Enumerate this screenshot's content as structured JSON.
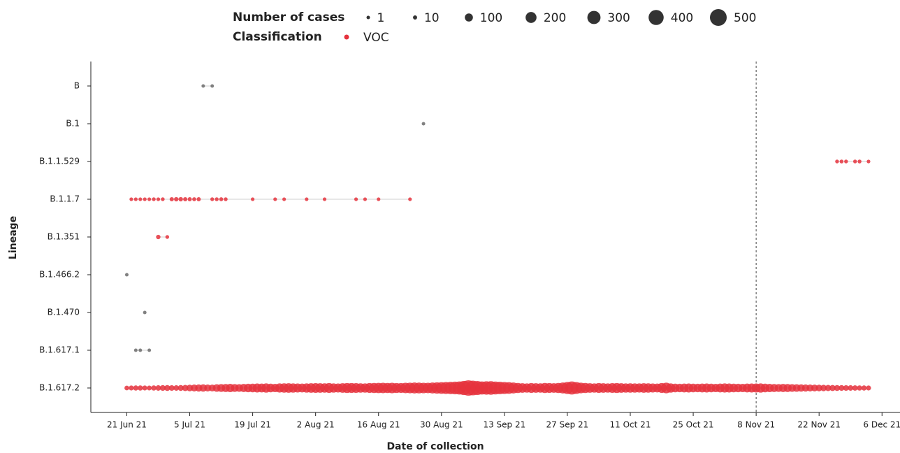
{
  "chart_data": {
    "type": "scatter",
    "xlabel": "Date of collection",
    "ylabel": "Lineage",
    "xlim": [
      "2021-06-13",
      "2021-12-10"
    ],
    "xticks": [
      {
        "value": "2021-06-21",
        "label": "21 Jun 21"
      },
      {
        "value": "2021-07-05",
        "label": "5 Jul 21"
      },
      {
        "value": "2021-07-19",
        "label": "19 Jul 21"
      },
      {
        "value": "2021-08-02",
        "label": "2 Aug 21"
      },
      {
        "value": "2021-08-16",
        "label": "16 Aug 21"
      },
      {
        "value": "2021-08-30",
        "label": "30 Aug 21"
      },
      {
        "value": "2021-09-13",
        "label": "13 Sep 21"
      },
      {
        "value": "2021-09-27",
        "label": "27 Sep 21"
      },
      {
        "value": "2021-10-11",
        "label": "11 Oct 21"
      },
      {
        "value": "2021-10-25",
        "label": "25 Oct 21"
      },
      {
        "value": "2021-11-08",
        "label": "8 Nov 21"
      },
      {
        "value": "2021-11-22",
        "label": "22 Nov 21"
      },
      {
        "value": "2021-12-06",
        "label": "6 Dec 21"
      }
    ],
    "reference_line_x": "2021-11-08",
    "size_legend": {
      "title": "Number of cases",
      "values": [
        1,
        10,
        100,
        200,
        300,
        400,
        500
      ],
      "color": "#333333"
    },
    "color_legend": {
      "title": "Classification",
      "entries": [
        {
          "name": "VOC",
          "color": "#e5323d"
        }
      ]
    },
    "series": [
      {
        "lineage": "B",
        "color": "#6b6b6b",
        "x": [
          "2021-07-08",
          "2021-07-10"
        ],
        "sizes": [
          1,
          1
        ]
      },
      {
        "lineage": "B.1",
        "color": "#6b6b6b",
        "x": [
          "2021-08-26"
        ],
        "sizes": [
          1
        ]
      },
      {
        "lineage": "B.1.1.529",
        "color": "#e5323d",
        "x": [
          "2021-11-26",
          "2021-11-27",
          "2021-11-28",
          "2021-11-30",
          "2021-12-01",
          "2021-12-03"
        ],
        "sizes": [
          5,
          6,
          5,
          5,
          6,
          3
        ]
      },
      {
        "lineage": "B.1.1.7",
        "color": "#e5323d",
        "x": [
          "2021-06-22",
          "2021-06-23",
          "2021-06-24",
          "2021-06-25",
          "2021-06-26",
          "2021-06-27",
          "2021-06-28",
          "2021-06-29",
          "2021-07-01",
          "2021-07-02",
          "2021-07-03",
          "2021-07-04",
          "2021-07-05",
          "2021-07-06",
          "2021-07-07",
          "2021-07-10",
          "2021-07-11",
          "2021-07-12",
          "2021-07-13",
          "2021-07-19",
          "2021-07-24",
          "2021-07-26",
          "2021-07-31",
          "2021-08-04",
          "2021-08-11",
          "2021-08-13",
          "2021-08-16",
          "2021-08-23"
        ],
        "sizes": [
          3,
          4,
          3,
          4,
          3,
          5,
          4,
          5,
          12,
          15,
          15,
          12,
          10,
          8,
          10,
          5,
          6,
          8,
          6,
          3,
          3,
          3,
          3,
          3,
          3,
          3,
          3,
          3
        ]
      },
      {
        "lineage": "B.1.351",
        "color": "#e5323d",
        "x": [
          "2021-06-28",
          "2021-06-30"
        ],
        "sizes": [
          15,
          5
        ]
      },
      {
        "lineage": "B.1.466.2",
        "color": "#6b6b6b",
        "x": [
          "2021-06-21"
        ],
        "sizes": [
          1
        ]
      },
      {
        "lineage": "B.1.470",
        "color": "#6b6b6b",
        "x": [
          "2021-06-25"
        ],
        "sizes": [
          1
        ]
      },
      {
        "lineage": "B.1.617.1",
        "color": "#6b6b6b",
        "x": [
          "2021-06-23",
          "2021-06-24",
          "2021-06-26"
        ],
        "sizes": [
          1,
          1,
          1
        ]
      },
      {
        "lineage": "B.1.617.2",
        "color": "#e5323d",
        "x": [
          "2021-06-21",
          "2021-06-22",
          "2021-06-23",
          "2021-06-24",
          "2021-06-25",
          "2021-06-26",
          "2021-06-27",
          "2021-06-28",
          "2021-06-29",
          "2021-06-30",
          "2021-07-01",
          "2021-07-02",
          "2021-07-03",
          "2021-07-04",
          "2021-07-05",
          "2021-07-06",
          "2021-07-07",
          "2021-07-08",
          "2021-07-09",
          "2021-07-10",
          "2021-07-11",
          "2021-07-12",
          "2021-07-13",
          "2021-07-14",
          "2021-07-15",
          "2021-07-16",
          "2021-07-17",
          "2021-07-18",
          "2021-07-19",
          "2021-07-20",
          "2021-07-21",
          "2021-07-22",
          "2021-07-23",
          "2021-07-24",
          "2021-07-25",
          "2021-07-26",
          "2021-07-27",
          "2021-07-28",
          "2021-07-29",
          "2021-07-30",
          "2021-07-31",
          "2021-08-01",
          "2021-08-02",
          "2021-08-03",
          "2021-08-04",
          "2021-08-05",
          "2021-08-06",
          "2021-08-07",
          "2021-08-08",
          "2021-08-09",
          "2021-08-10",
          "2021-08-11",
          "2021-08-12",
          "2021-08-13",
          "2021-08-14",
          "2021-08-15",
          "2021-08-16",
          "2021-08-17",
          "2021-08-18",
          "2021-08-19",
          "2021-08-20",
          "2021-08-21",
          "2021-08-22",
          "2021-08-23",
          "2021-08-24",
          "2021-08-25",
          "2021-08-26",
          "2021-08-27",
          "2021-08-28",
          "2021-08-29",
          "2021-08-30",
          "2021-08-31",
          "2021-09-01",
          "2021-09-02",
          "2021-09-03",
          "2021-09-04",
          "2021-09-05",
          "2021-09-06",
          "2021-09-07",
          "2021-09-08",
          "2021-09-09",
          "2021-09-10",
          "2021-09-11",
          "2021-09-12",
          "2021-09-13",
          "2021-09-14",
          "2021-09-15",
          "2021-09-16",
          "2021-09-17",
          "2021-09-18",
          "2021-09-19",
          "2021-09-20",
          "2021-09-21",
          "2021-09-22",
          "2021-09-23",
          "2021-09-24",
          "2021-09-25",
          "2021-09-26",
          "2021-09-27",
          "2021-09-28",
          "2021-09-29",
          "2021-09-30",
          "2021-10-01",
          "2021-10-02",
          "2021-10-03",
          "2021-10-04",
          "2021-10-05",
          "2021-10-06",
          "2021-10-07",
          "2021-10-08",
          "2021-10-09",
          "2021-10-10",
          "2021-10-11",
          "2021-10-12",
          "2021-10-13",
          "2021-10-14",
          "2021-10-15",
          "2021-10-16",
          "2021-10-17",
          "2021-10-18",
          "2021-10-19",
          "2021-10-20",
          "2021-10-21",
          "2021-10-22",
          "2021-10-23",
          "2021-10-24",
          "2021-10-25",
          "2021-10-26",
          "2021-10-27",
          "2021-10-28",
          "2021-10-29",
          "2021-10-30",
          "2021-10-31",
          "2021-11-01",
          "2021-11-02",
          "2021-11-03",
          "2021-11-04",
          "2021-11-05",
          "2021-11-06",
          "2021-11-07",
          "2021-11-08",
          "2021-11-09",
          "2021-11-10",
          "2021-11-11",
          "2021-11-12",
          "2021-11-13",
          "2021-11-14",
          "2021-11-15",
          "2021-11-16",
          "2021-11-17",
          "2021-11-18",
          "2021-11-19",
          "2021-11-20",
          "2021-11-21",
          "2021-11-22",
          "2021-11-23",
          "2021-11-24",
          "2021-11-25",
          "2021-11-26",
          "2021-11-27",
          "2021-11-28",
          "2021-11-29",
          "2021-11-30",
          "2021-12-01",
          "2021-12-02",
          "2021-12-03"
        ],
        "sizes": [
          20,
          25,
          28,
          30,
          25,
          22,
          30,
          35,
          40,
          45,
          38,
          35,
          42,
          50,
          60,
          70,
          75,
          80,
          70,
          65,
          85,
          95,
          100,
          110,
          95,
          90,
          105,
          115,
          120,
          130,
          125,
          140,
          120,
          110,
          135,
          145,
          150,
          140,
          130,
          125,
          140,
          150,
          155,
          150,
          145,
          160,
          140,
          130,
          150,
          165,
          160,
          155,
          145,
          140,
          160,
          170,
          175,
          180,
          170,
          185,
          165,
          160,
          180,
          190,
          200,
          195,
          185,
          180,
          200,
          215,
          230,
          245,
          260,
          280,
          300,
          350,
          420,
          380,
          340,
          300,
          310,
          320,
          290,
          270,
          250,
          230,
          200,
          170,
          150,
          140,
          160,
          150,
          145,
          170,
          160,
          150,
          170,
          200,
          250,
          300,
          240,
          190,
          170,
          150,
          140,
          160,
          150,
          140,
          155,
          165,
          150,
          140,
          145,
          140,
          135,
          150,
          145,
          130,
          125,
          160,
          190,
          140,
          120,
          115,
          125,
          130,
          120,
          115,
          125,
          130,
          120,
          110,
          125,
          135,
          130,
          120,
          115,
          110,
          125,
          130,
          130,
          140,
          120,
          110,
          100,
          95,
          105,
          100,
          90,
          85,
          80,
          75,
          70,
          65,
          60,
          55,
          50,
          48,
          45,
          40,
          38,
          35,
          32,
          30,
          28,
          25
        ]
      }
    ]
  }
}
